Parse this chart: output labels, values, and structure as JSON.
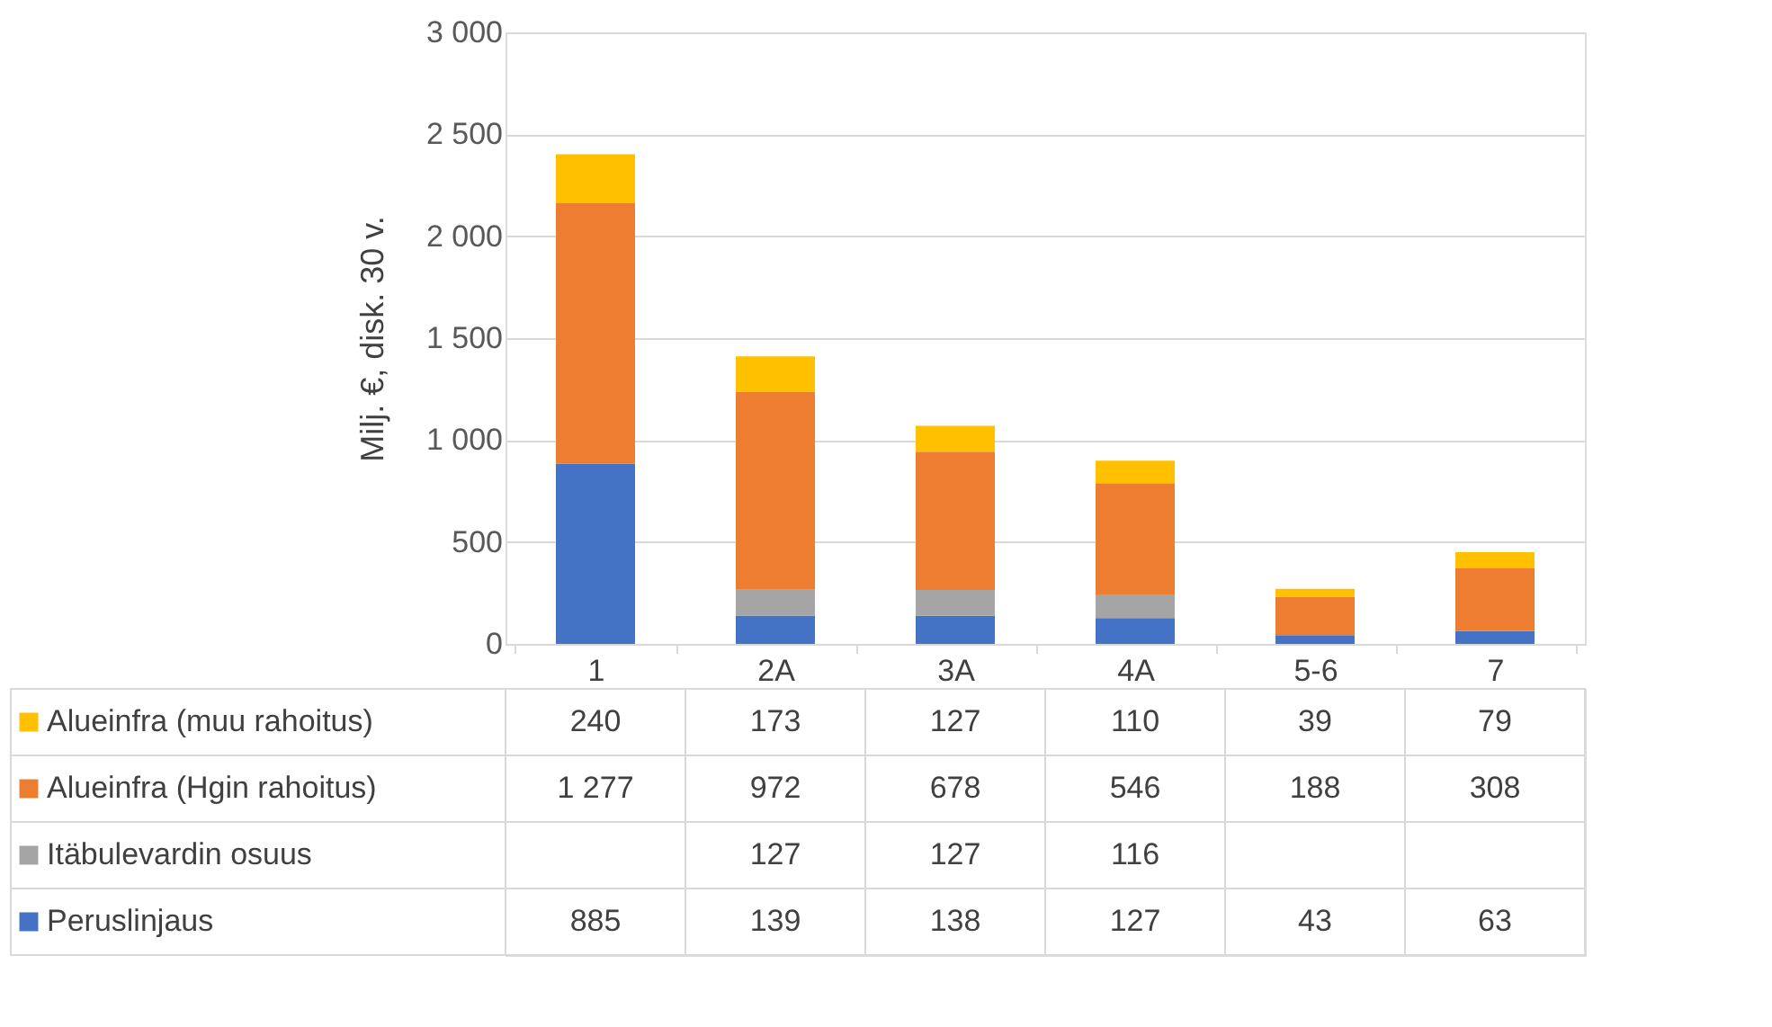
{
  "chart_data": {
    "type": "bar",
    "stacked": true,
    "ylabel": "Milj. €, disk. 30 v.",
    "categories": [
      "1",
      "2A",
      "3A",
      "4A",
      "5-6",
      "7"
    ],
    "series": [
      {
        "name": "Peruslinjaus",
        "color": "#4472c4",
        "values": [
          885,
          139,
          138,
          127,
          43,
          63
        ]
      },
      {
        "name": "Itäbulevardin osuus",
        "color": "#a5a5a5",
        "values": [
          null,
          127,
          127,
          116,
          null,
          null
        ]
      },
      {
        "name": "Alueinfra (Hgin rahoitus)",
        "color": "#ed7d31",
        "values": [
          1277,
          972,
          678,
          546,
          188,
          308
        ]
      },
      {
        "name": "Alueinfra (muu rahoitus)",
        "color": "#ffc000",
        "values": [
          240,
          173,
          127,
          110,
          39,
          79
        ]
      }
    ],
    "ylim": [
      0,
      3000
    ],
    "yticks": [
      0,
      500,
      {
        "value": 1000,
        "label": "1 000"
      },
      {
        "value": 1500,
        "label": "1 500"
      },
      {
        "value": 2000,
        "label": "2 000"
      },
      {
        "value": 2500,
        "label": "2 500"
      },
      {
        "value": 3000,
        "label": "3 000"
      }
    ],
    "grid": "y",
    "legend": "bottom",
    "data_labels": true
  }
}
